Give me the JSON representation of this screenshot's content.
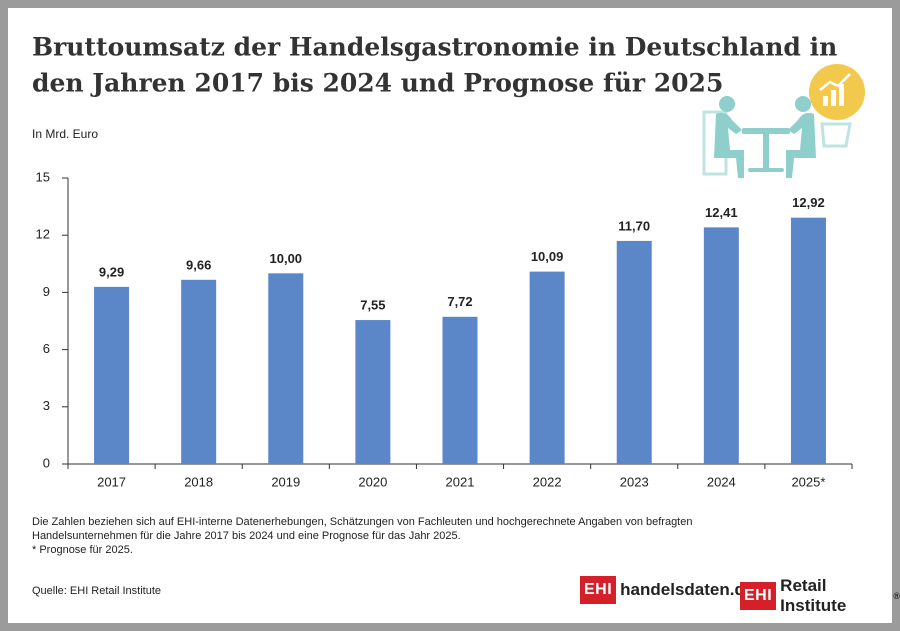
{
  "chart_data": {
    "type": "bar",
    "title": [
      "Bruttoumsatz der Handelsgastronomie in Deutschland in",
      "den Jahren 2017 bis 2024 und Prognose für 2025"
    ],
    "y_label": "In Mrd. Euro",
    "categories": [
      "2017",
      "2018",
      "2019",
      "2020",
      "2021",
      "2022",
      "2023",
      "2024",
      "2025*"
    ],
    "values": [
      9.29,
      9.66,
      10.0,
      7.55,
      7.72,
      10.09,
      11.7,
      12.41,
      12.92
    ],
    "value_labels": [
      "9,29",
      "9,66",
      "10,00",
      "7,55",
      "7,72",
      "10,09",
      "11,70",
      "12,41",
      "12,92"
    ],
    "color": "#5b86c8",
    "ylim": [
      0,
      15
    ],
    "yticks": [
      0,
      3,
      6,
      9,
      12,
      15
    ],
    "grid": false
  },
  "footnotes": [
    "Die Zahlen beziehen sich auf EHI-interne Datenerhebungen, Schätzungen von Fachleuten und hochgerechnete Angaben von befragten Handelsunternehmen für die Jahre 2017 bis 2024 und eine Prognose für das Jahr 2025.",
    "* Prognose für 2025."
  ],
  "source": "Quelle: EHI Retail Institute",
  "logos": [
    {
      "mark": "EHI",
      "text": "handelsdaten.de"
    },
    {
      "mark": "EHI",
      "text": "Retail Institute",
      "sup": "®"
    }
  ]
}
